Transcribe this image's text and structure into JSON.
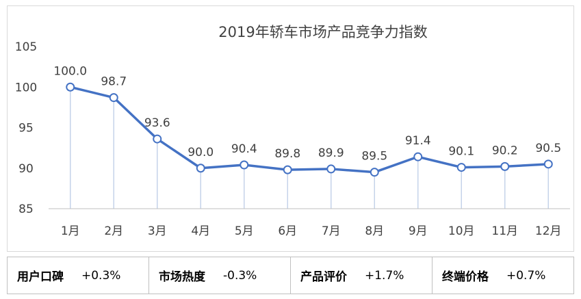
{
  "chart_data": {
    "type": "line",
    "title": "2019年轿车市场产品竞争力指数",
    "categories": [
      "1月",
      "2月",
      "3月",
      "4月",
      "5月",
      "6月",
      "7月",
      "8月",
      "9月",
      "10月",
      "11月",
      "12月"
    ],
    "series": [
      {
        "values": [
          100.0,
          98.7,
          93.6,
          90.0,
          90.4,
          89.8,
          89.9,
          89.5,
          91.4,
          90.1,
          90.2,
          90.5
        ]
      }
    ],
    "data_labels": [
      "100.0",
      "98.7",
      "93.6",
      "90.0",
      "90.4",
      "89.8",
      "89.9",
      "89.5",
      "91.4",
      "90.1",
      "90.2",
      "90.5"
    ],
    "yticks": [
      "85",
      "90",
      "95",
      "100",
      "105"
    ],
    "ylim": [
      85,
      105
    ],
    "grid": false,
    "colors": {
      "line": "#4472c4",
      "drop_line": "#c5d3ea",
      "axis": "#bfbfbf",
      "text": "#404040"
    }
  },
  "metrics": [
    {
      "label": "用户口碑",
      "value": "+0.3%"
    },
    {
      "label": "市场热度",
      "value": "-0.3%"
    },
    {
      "label": "产品评价",
      "value": "+1.7%"
    },
    {
      "label": "终端价格",
      "value": "+0.7%"
    }
  ]
}
